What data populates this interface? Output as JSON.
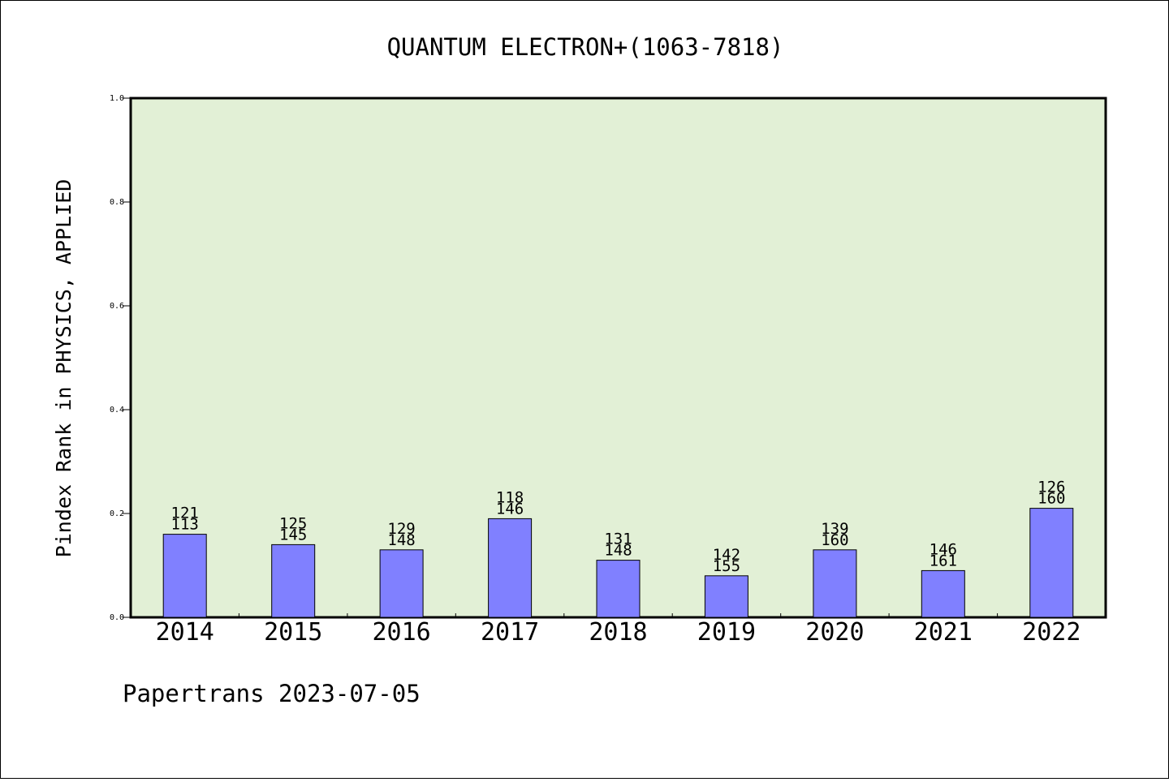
{
  "chart_data": {
    "type": "bar",
    "title": "QUANTUM ELECTRON+(1063-7818)",
    "xlabel": "",
    "ylabel": "Pindex Rank in PHYSICS, APPLIED",
    "ylim": [
      0,
      1.0
    ],
    "yticks": [
      "0.0",
      "0.2",
      "0.4",
      "0.6",
      "0.8",
      "1.0"
    ],
    "categories": [
      "2014",
      "2015",
      "2016",
      "2017",
      "2018",
      "2019",
      "2020",
      "2021",
      "2022"
    ],
    "values": [
      0.16,
      0.14,
      0.13,
      0.19,
      0.11,
      0.08,
      0.13,
      0.09,
      0.21
    ],
    "labels_top": [
      "121",
      "125",
      "129",
      "118",
      "131",
      "142",
      "139",
      "146",
      "126"
    ],
    "labels_bottom": [
      "113",
      "145",
      "148",
      "146",
      "148",
      "155",
      "160",
      "161",
      "160"
    ],
    "bar_color": "#8080ff",
    "plot_background": "#e2f0d6",
    "grid": false,
    "legend": "none"
  },
  "footer": {
    "credit": "Papertrans 2023-07-05"
  }
}
